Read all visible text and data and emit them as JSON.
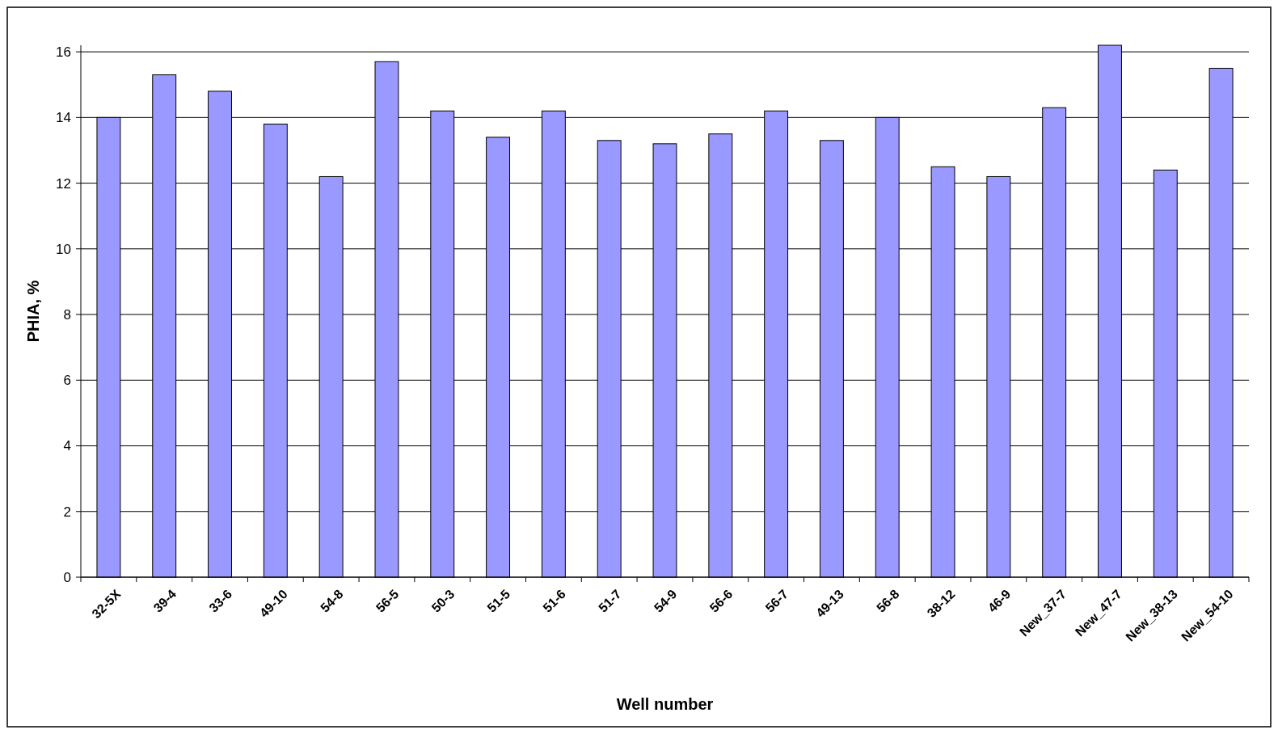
{
  "chart_data": {
    "type": "bar",
    "xlabel": "Well number",
    "ylabel": "PHIA, %",
    "categories": [
      "32-5X",
      "39-4",
      "33-6",
      "49-10",
      "54-8",
      "56-5",
      "50-3",
      "51-5",
      "51-6",
      "51-7",
      "54-9",
      "56-6",
      "56-7",
      "49-13",
      "56-8",
      "38-12",
      "46-9",
      "New_37-7",
      "New_47-7",
      "New_38-13",
      "New_54-10"
    ],
    "values": [
      14.0,
      15.3,
      14.8,
      13.8,
      12.2,
      15.7,
      14.2,
      13.4,
      14.2,
      13.3,
      13.2,
      13.5,
      14.2,
      13.3,
      14.0,
      12.5,
      12.2,
      14.3,
      16.2,
      12.4,
      15.5
    ],
    "color": "#9999ff",
    "ylim": [
      0,
      16.2
    ],
    "yticks": [
      0,
      2,
      4,
      6,
      8,
      10,
      12,
      14,
      16
    ],
    "grid": "y"
  }
}
